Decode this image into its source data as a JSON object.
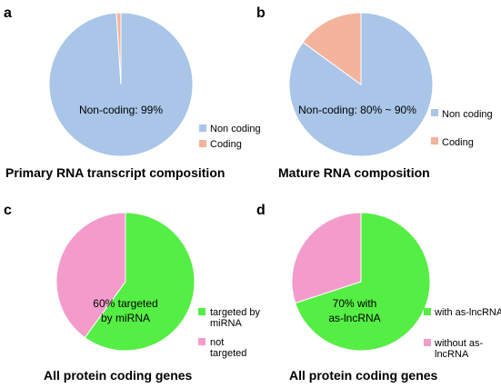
{
  "chart_data": [
    {
      "panel": "a",
      "type": "pie",
      "title": "Primary RNA transcript composition",
      "center_label": [
        "Non-coding: 99%"
      ],
      "slices": [
        {
          "name": "Non coding",
          "value": 99,
          "color": "#a9c5e8"
        },
        {
          "name": "Coding",
          "value": 1,
          "color": "#f4b39b"
        }
      ],
      "legend": {
        "position": "right"
      }
    },
    {
      "panel": "b",
      "type": "pie",
      "title": "Mature RNA composition",
      "center_label": [
        "Non-coding: 80% ~ 90%"
      ],
      "slices": [
        {
          "name": "Non coding",
          "value": 85,
          "color": "#a9c5e8"
        },
        {
          "name": "Coding",
          "value": 15,
          "color": "#f4b39b"
        }
      ],
      "legend": {
        "position": "right"
      }
    },
    {
      "panel": "c",
      "type": "pie",
      "title": "All protein coding genes",
      "center_label": [
        "60% targeted",
        "by miRNA"
      ],
      "slices": [
        {
          "name": "targeted by miRNA",
          "value": 60,
          "color": "#55ee44"
        },
        {
          "name": "not targeted",
          "value": 40,
          "color": "#f39ccc"
        }
      ],
      "legend": {
        "position": "right"
      }
    },
    {
      "panel": "d",
      "type": "pie",
      "title": "All protein coding genes",
      "center_label": [
        "70% with",
        "as-lncRNA"
      ],
      "slices": [
        {
          "name": "with as-lncRNA",
          "value": 70,
          "color": "#55ee44"
        },
        {
          "name": "without as-lncRNA",
          "value": 30,
          "color": "#f39ccc"
        }
      ],
      "legend": {
        "position": "right"
      }
    }
  ]
}
